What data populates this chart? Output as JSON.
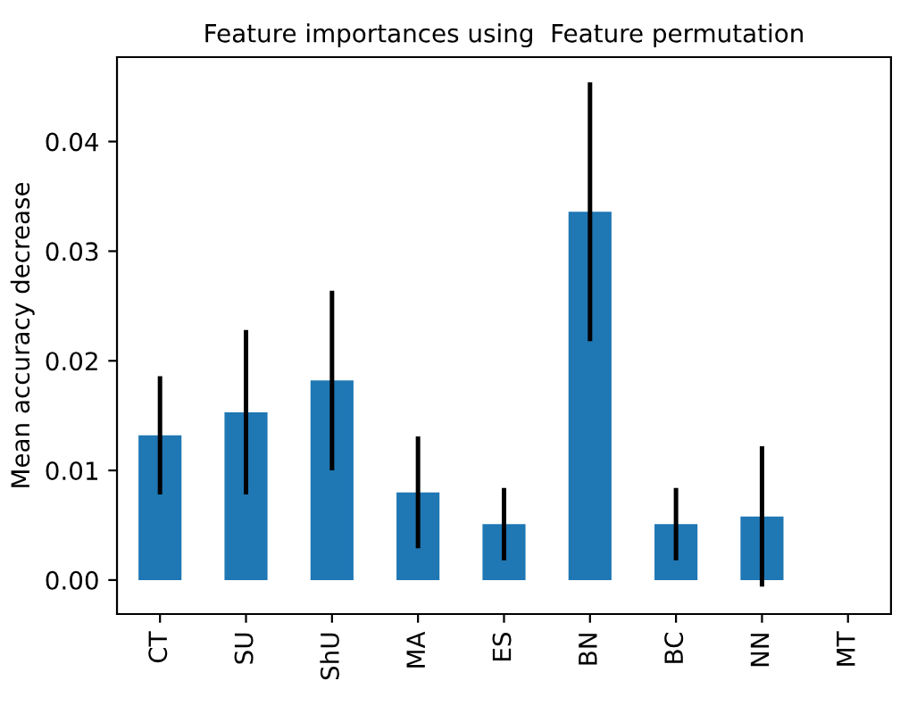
{
  "chart_data": {
    "type": "bar",
    "title": "Feature importances using  Feature permutation",
    "ylabel": "Mean accuracy decrease",
    "categories": [
      "CT",
      "SU",
      "ShU",
      "MA",
      "ES",
      "BN",
      "BC",
      "NN",
      "MT"
    ],
    "values": [
      0.0132,
      0.0153,
      0.0182,
      0.008,
      0.0051,
      0.0336,
      0.0051,
      0.0058,
      0
    ],
    "errors": [
      0.0054,
      0.0075,
      0.0082,
      0.0051,
      0.0033,
      0.0118,
      0.0033,
      0.0064,
      0
    ],
    "color": "#1f77b4",
    "ylim": [
      -0.0031,
      0.0477
    ],
    "yticks": [
      {
        "value": 0,
        "label": "0.00"
      },
      {
        "value": 0.01,
        "label": "0.01"
      },
      {
        "value": 0.02,
        "label": "0.02"
      },
      {
        "value": 0.03,
        "label": "0.03"
      },
      {
        "value": 0.04,
        "label": "0.04"
      }
    ],
    "grid": false
  }
}
